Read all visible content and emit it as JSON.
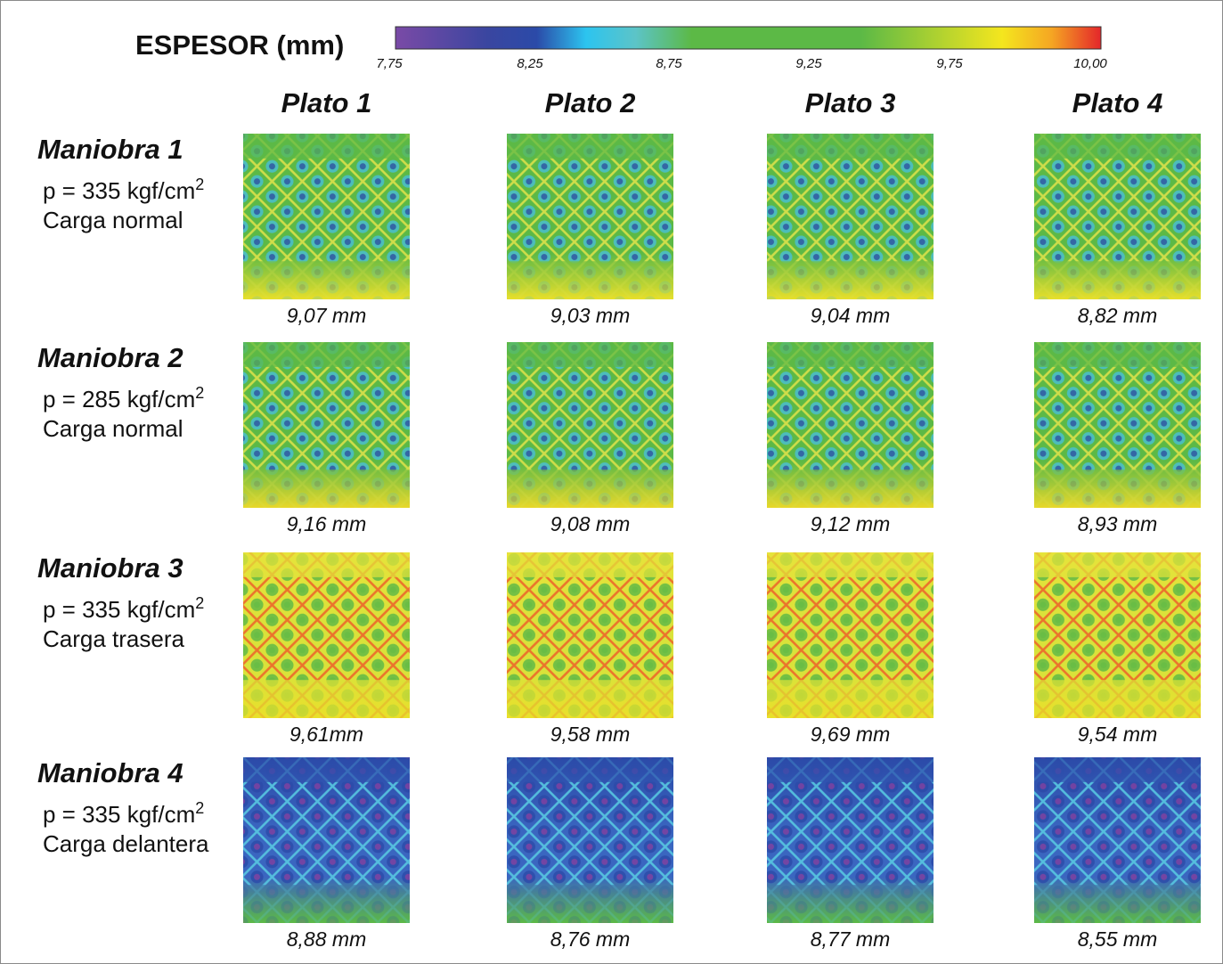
{
  "colorbar": {
    "title": "ESPESOR (mm)",
    "ticks": [
      "7,75",
      "8,25",
      "8,75",
      "9,25",
      "9,75",
      "10,00"
    ]
  },
  "columns": [
    "Plato 1",
    "Plato 2",
    "Plato 3",
    "Plato 4"
  ],
  "rows": [
    {
      "label": "Maniobra 1",
      "pressure": "p = 335 kgf/cm",
      "pressure_sup": "2",
      "load": "Carga normal",
      "cells": [
        "9,07 mm",
        "9,03 mm",
        "9,04 mm",
        "8,82 mm"
      ]
    },
    {
      "label": "Maniobra 2",
      "pressure": "p = 285 kgf/cm",
      "pressure_sup": "2",
      "load": "Carga normal",
      "cells": [
        "9,16 mm",
        "9,08 mm",
        "9,12 mm",
        "8,93 mm"
      ]
    },
    {
      "label": "Maniobra 3",
      "pressure": "p = 335 kgf/cm",
      "pressure_sup": "2",
      "load": "Carga trasera",
      "cells": [
        "9,61mm",
        "9,58 mm",
        "9,69 mm",
        "9,54 mm"
      ]
    },
    {
      "label": "Maniobra 4",
      "pressure": "p = 335 kgf/cm",
      "pressure_sup": "2",
      "load": "Carga delantera",
      "cells": [
        "8,88 mm",
        "8,76 mm",
        "8,77 mm",
        "8,55 mm"
      ]
    }
  ]
}
